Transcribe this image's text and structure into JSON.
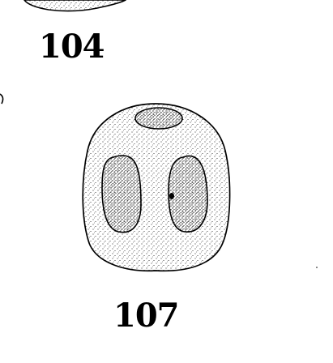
{
  "labels": {
    "top_partial": "104",
    "main": "107"
  },
  "colors": {
    "ink": "#000000",
    "paper": "#ffffff"
  }
}
